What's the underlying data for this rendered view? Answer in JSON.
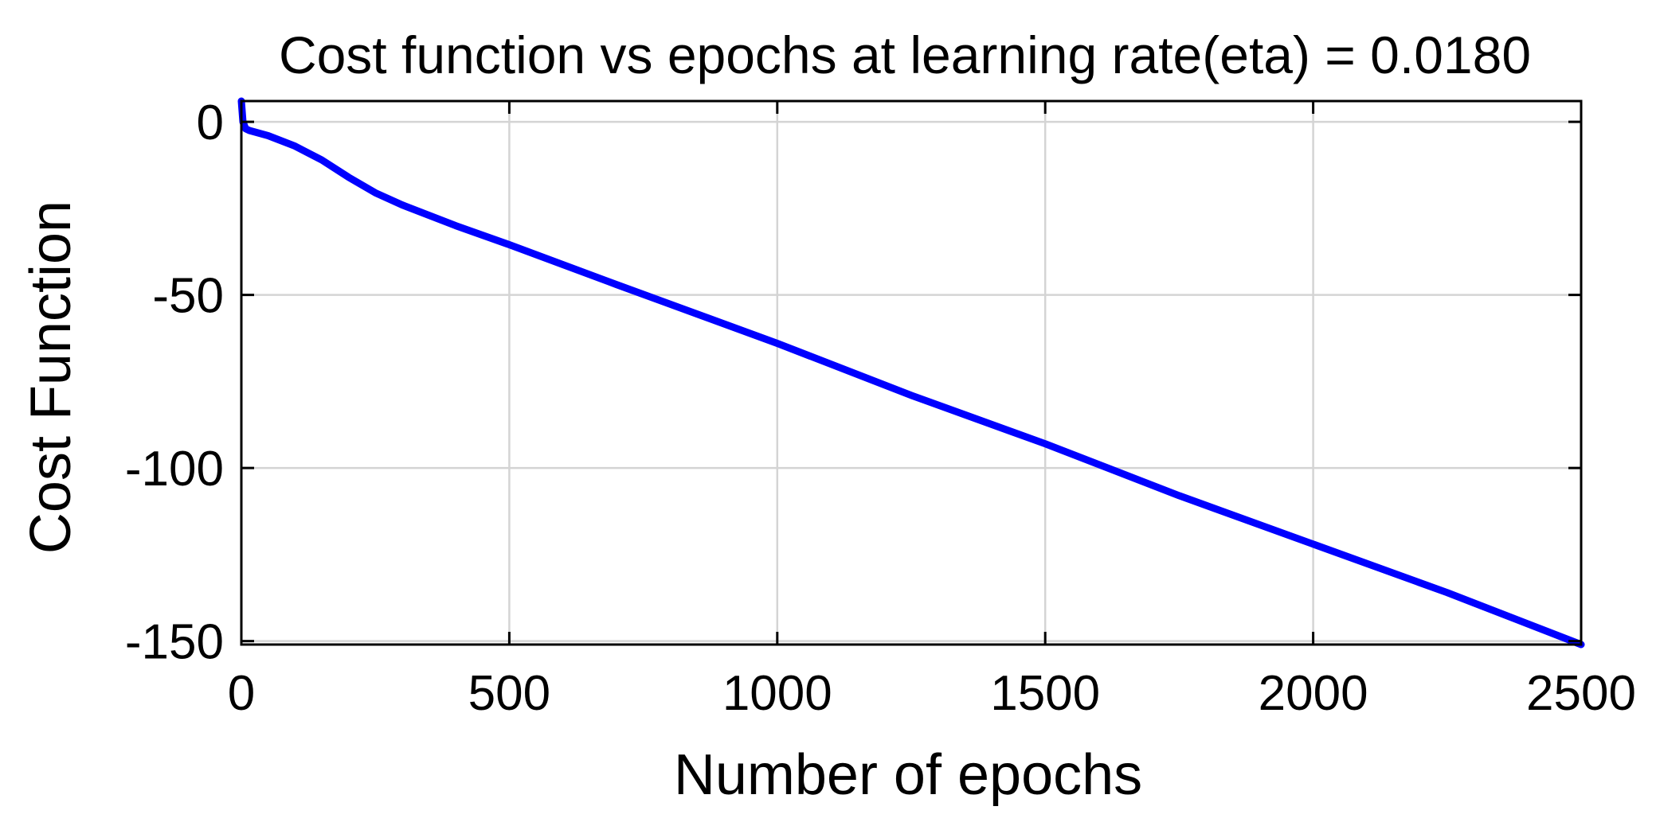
{
  "chart_data": {
    "type": "line",
    "title": "Cost function vs epochs at learning rate(eta) = 0.0180",
    "xlabel": "Number of epochs",
    "ylabel": "Cost Function",
    "xlim": [
      0,
      2500
    ],
    "ylim": [
      -151,
      6
    ],
    "grid": true,
    "x_ticks": [
      0,
      500,
      1000,
      1500,
      2000,
      2500
    ],
    "x_tick_labels": [
      "0",
      "500",
      "1000",
      "1500",
      "2000",
      "2500"
    ],
    "y_ticks": [
      0,
      -50,
      -100,
      -150
    ],
    "y_tick_labels": [
      "0",
      "-50",
      "-100",
      "-150"
    ],
    "series": [
      {
        "color": "#0000ff",
        "x": [
          0,
          3,
          8,
          15,
          50,
          100,
          150,
          200,
          250,
          300,
          400,
          500,
          700,
          1000,
          1250,
          1500,
          1750,
          2000,
          2250,
          2500
        ],
        "y": [
          6,
          0,
          -2,
          -2.5,
          -4,
          -7,
          -11,
          -16,
          -20.5,
          -24,
          -30,
          -35.5,
          -47,
          -64,
          -79,
          -93,
          -108,
          -122,
          -136,
          -151
        ]
      }
    ]
  }
}
